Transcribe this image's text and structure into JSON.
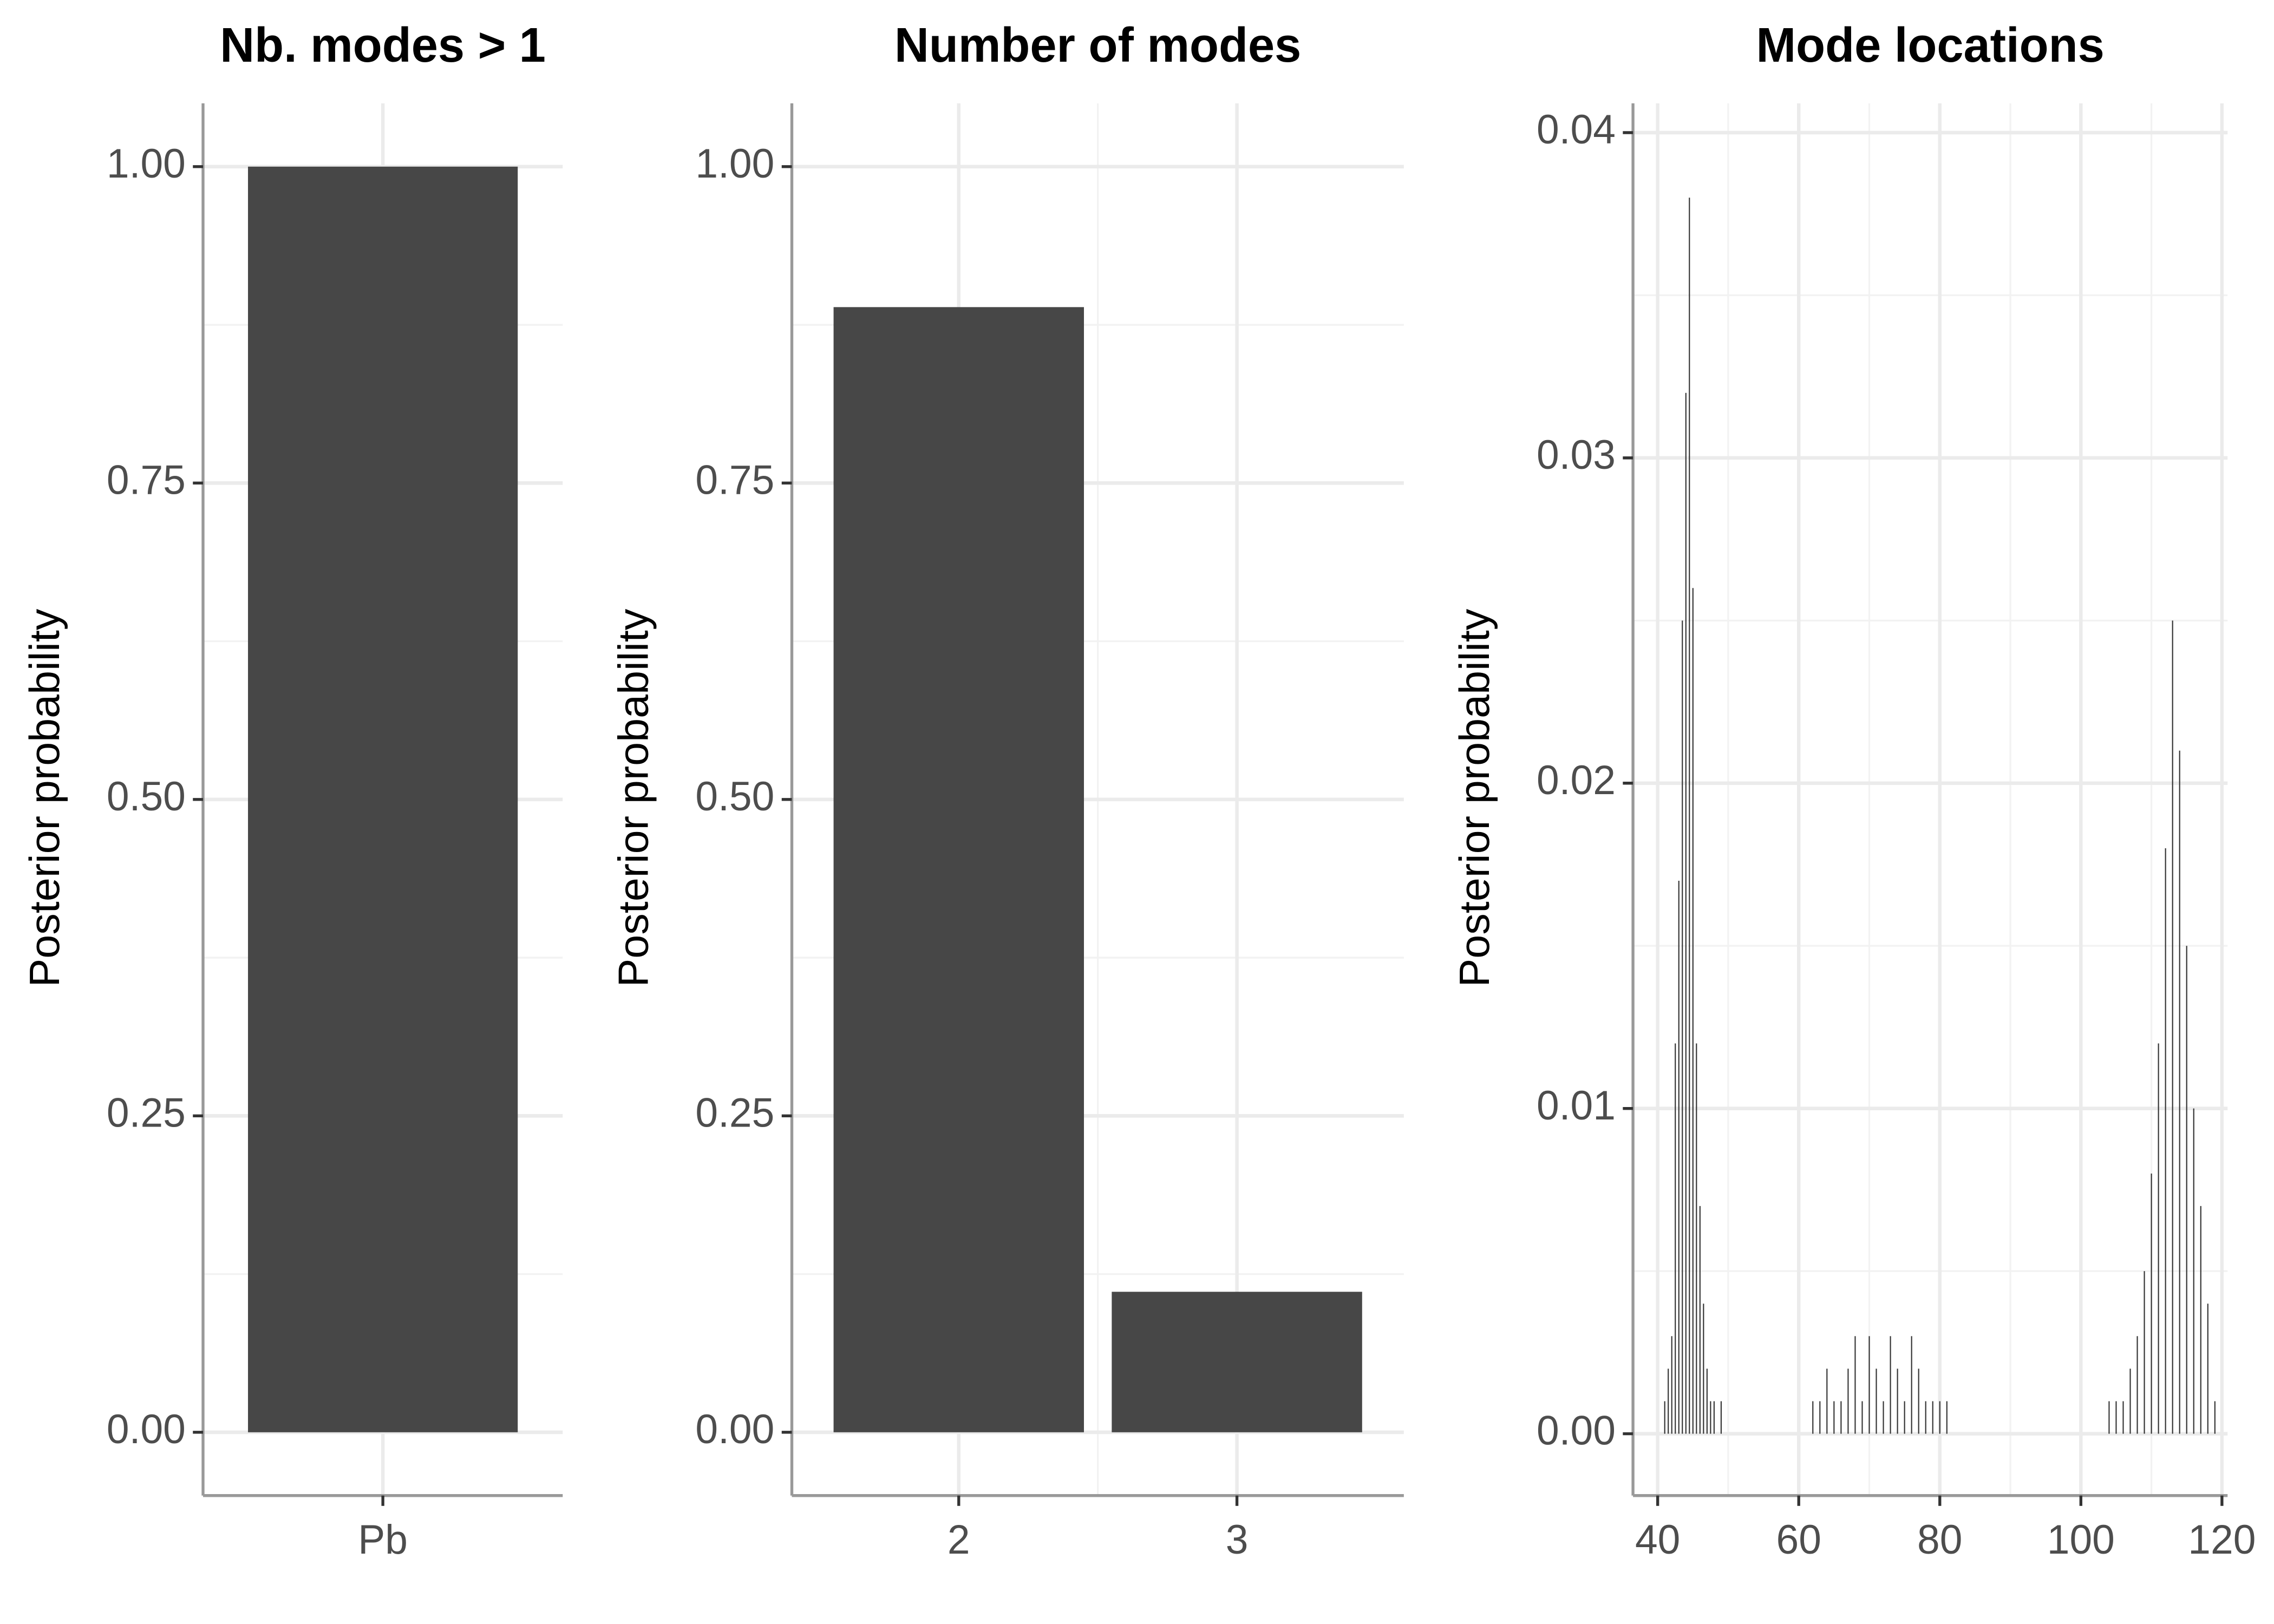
{
  "chart_data": [
    {
      "type": "bar",
      "title": "Nb. modes > 1",
      "y_label": "Posterior probability",
      "categories": [
        "Pb"
      ],
      "values": [
        1.0
      ],
      "color": "#474747",
      "ylim": [
        -0.05,
        1.05
      ],
      "yticks": [
        {
          "value": 0,
          "label": "0.00"
        },
        {
          "value": 0.25,
          "label": "0.25"
        },
        {
          "value": 0.5,
          "label": "0.50"
        },
        {
          "value": 0.75,
          "label": "0.75"
        },
        {
          "value": 1,
          "label": "1.00"
        }
      ],
      "grid": true
    },
    {
      "type": "bar",
      "title": "Number of modes",
      "y_label": "Posterior probability",
      "categories": [
        "2",
        "3"
      ],
      "values": [
        0.889,
        0.111
      ],
      "color": "#474747",
      "ylim": [
        -0.05,
        1.05
      ],
      "yticks": [
        {
          "value": 0,
          "label": "0.00"
        },
        {
          "value": 0.25,
          "label": "0.25"
        },
        {
          "value": 0.5,
          "label": "0.50"
        },
        {
          "value": 0.75,
          "label": "0.75"
        },
        {
          "value": 1,
          "label": "1.00"
        }
      ],
      "grid": true
    },
    {
      "type": "spike",
      "title": "Mode locations",
      "y_label": "Posterior probability",
      "x": [
        41,
        41.5,
        42,
        42.5,
        43,
        43.5,
        44,
        44.5,
        45,
        45.5,
        46,
        46.5,
        47,
        47.5,
        48,
        49,
        62,
        63,
        64,
        65,
        66,
        67,
        68,
        69,
        70,
        71,
        72,
        73,
        74,
        75,
        76,
        77,
        78,
        79,
        80,
        81,
        104,
        105,
        106,
        107,
        108,
        109,
        110,
        111,
        112,
        113,
        114,
        115,
        116,
        117,
        118,
        119
      ],
      "values": [
        0.001,
        0.002,
        0.003,
        0.012,
        0.017,
        0.025,
        0.032,
        0.038,
        0.026,
        0.012,
        0.007,
        0.004,
        0.002,
        0.001,
        0.001,
        0.001,
        0.001,
        0.001,
        0.002,
        0.001,
        0.001,
        0.002,
        0.003,
        0.001,
        0.003,
        0.002,
        0.001,
        0.003,
        0.002,
        0.001,
        0.003,
        0.002,
        0.001,
        0.001,
        0.001,
        0.001,
        0.001,
        0.001,
        0.001,
        0.002,
        0.003,
        0.005,
        0.008,
        0.012,
        0.018,
        0.025,
        0.021,
        0.015,
        0.01,
        0.007,
        0.004,
        0.001
      ],
      "color": "#333333",
      "xlim": [
        36.5,
        120.8
      ],
      "xticks": [
        40,
        60,
        80,
        100,
        120
      ],
      "ylim": [
        -0.0019,
        0.0409
      ],
      "yticks": [
        {
          "value": 0,
          "label": "0.00"
        },
        {
          "value": 0.01,
          "label": "0.01"
        },
        {
          "value": 0.02,
          "label": "0.02"
        },
        {
          "value": 0.03,
          "label": "0.03"
        },
        {
          "value": 0.04,
          "label": "0.04"
        }
      ],
      "grid": true
    }
  ]
}
